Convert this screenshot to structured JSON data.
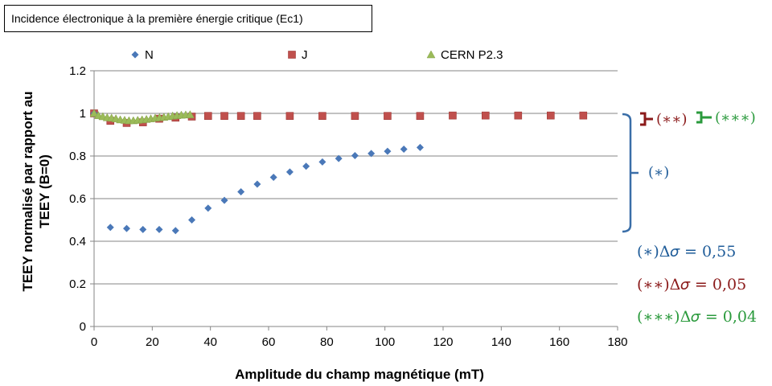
{
  "chart_data": {
    "type": "scatter",
    "title": "Incidence électronique à la première énergie critique (Ec1)",
    "xlabel": "Amplitude du champ magnétique (mT)",
    "ylabel": "TEEY normalisé par rapport au TEEY (B=0)",
    "xlim": [
      0,
      180
    ],
    "ylim": [
      0,
      1.2
    ],
    "x_ticks": [
      "0",
      "20",
      "40",
      "60",
      "80",
      "100",
      "120",
      "140",
      "160",
      "180"
    ],
    "y_ticks": [
      "0",
      "0.2",
      "0.4",
      "0.6",
      "0.8",
      "1",
      "1.2"
    ],
    "grid": "horizontal",
    "legend_position": "top",
    "series": [
      {
        "name": "N",
        "marker": "diamond",
        "color": "#4a78b8",
        "points": [
          [
            0,
            1.0
          ],
          [
            5.6,
            0.465
          ],
          [
            11.2,
            0.46
          ],
          [
            16.8,
            0.455
          ],
          [
            22.4,
            0.455
          ],
          [
            28.0,
            0.45
          ],
          [
            33.6,
            0.5
          ],
          [
            39.2,
            0.555
          ],
          [
            44.8,
            0.592
          ],
          [
            50.5,
            0.632
          ],
          [
            56.1,
            0.668
          ],
          [
            61.7,
            0.7
          ],
          [
            67.3,
            0.725
          ],
          [
            72.9,
            0.752
          ],
          [
            78.5,
            0.772
          ],
          [
            84.1,
            0.788
          ],
          [
            89.7,
            0.802
          ],
          [
            95.3,
            0.812
          ],
          [
            100.9,
            0.822
          ],
          [
            106.5,
            0.832
          ],
          [
            112.1,
            0.84
          ]
        ]
      },
      {
        "name": "J",
        "marker": "square",
        "color": "#c0504d",
        "points": [
          [
            0,
            1.0
          ],
          [
            5.6,
            0.965
          ],
          [
            11.2,
            0.955
          ],
          [
            16.8,
            0.958
          ],
          [
            22.4,
            0.975
          ],
          [
            28.0,
            0.98
          ],
          [
            33.6,
            0.985
          ],
          [
            39.2,
            0.988
          ],
          [
            44.8,
            0.988
          ],
          [
            50.5,
            0.988
          ],
          [
            56.1,
            0.988
          ],
          [
            67.3,
            0.988
          ],
          [
            78.5,
            0.988
          ],
          [
            89.7,
            0.988
          ],
          [
            100.9,
            0.988
          ],
          [
            112.1,
            0.988
          ],
          [
            123.3,
            0.99
          ],
          [
            134.6,
            0.99
          ],
          [
            145.8,
            0.99
          ],
          [
            157.0,
            0.99
          ],
          [
            168.2,
            0.99
          ]
        ]
      },
      {
        "name": "CERN P2.3",
        "marker": "triangle",
        "color": "#9bbb59",
        "points": [
          [
            0,
            1.0
          ],
          [
            1.5,
            0.99
          ],
          [
            3.0,
            0.985
          ],
          [
            4.5,
            0.98
          ],
          [
            6.0,
            0.978
          ],
          [
            7.5,
            0.975
          ],
          [
            9.0,
            0.97
          ],
          [
            10.5,
            0.968
          ],
          [
            12.0,
            0.966
          ],
          [
            13.5,
            0.966
          ],
          [
            15.0,
            0.968
          ],
          [
            16.5,
            0.97
          ],
          [
            18.0,
            0.972
          ],
          [
            19.5,
            0.975
          ],
          [
            21.0,
            0.978
          ],
          [
            22.5,
            0.98
          ],
          [
            24.0,
            0.982
          ],
          [
            25.5,
            0.985
          ],
          [
            27.0,
            0.988
          ],
          [
            28.5,
            0.99
          ],
          [
            30.0,
            0.992
          ],
          [
            31.5,
            0.993
          ],
          [
            33.0,
            0.994
          ]
        ]
      }
    ],
    "annotations": {
      "delta_star": "(∗)Δ𝜎 = 0,55",
      "delta_2star": "(∗∗)Δ𝜎 = 0,05",
      "delta_3star": "(∗∗∗)Δ𝜎 = 0,04",
      "bracket_star": "(∗)",
      "bracket_2star": "(∗∗)",
      "bracket_3star": "(∗∗∗)"
    }
  }
}
